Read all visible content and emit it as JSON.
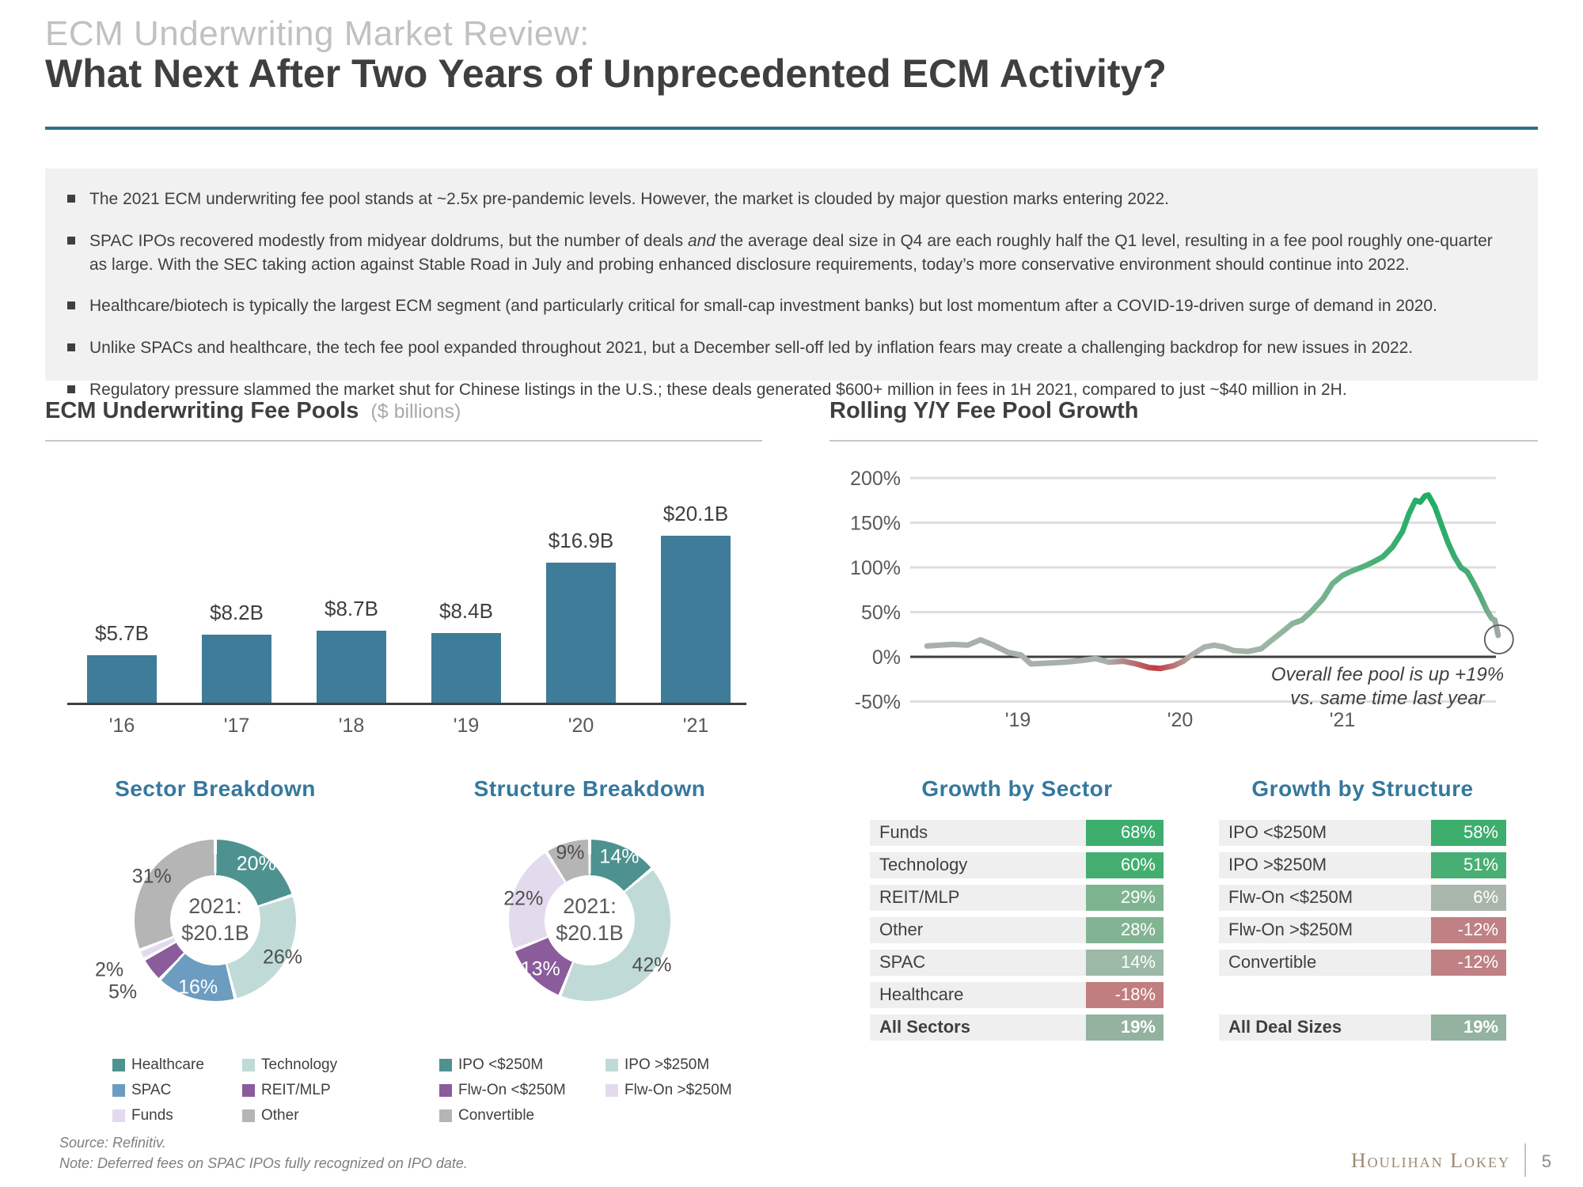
{
  "header": {
    "kicker": "ECM Underwriting Market Review:",
    "title": "What Next After Two Years of Unprecedented ECM Activity?"
  },
  "bullets": [
    {
      "pre": "The 2021 ECM underwriting fee pool stands at ~2.5x pre-pandemic levels. However, the market is clouded by major question marks entering 2022.",
      "italic": "",
      "post": ""
    },
    {
      "pre": "SPAC IPOs recovered modestly from midyear doldrums, but the number of deals ",
      "italic": "and",
      "post": " the average deal size in Q4 are each roughly half the Q1 level, resulting in a fee pool roughly one-quarter as large. With the SEC taking action against Stable Road in July and probing enhanced disclosure requirements, today’s more conservative environment should continue into 2022."
    },
    {
      "pre": "Healthcare/biotech is typically the largest ECM segment (and particularly critical for small-cap investment banks) but lost momentum after a COVID-19-driven surge of demand in 2020.",
      "italic": "",
      "post": ""
    },
    {
      "pre": "Unlike SPACs and healthcare, the tech fee pool expanded throughout 2021, but a December sell-off led by inflation fears may create a challenging backdrop for new issues in 2022.",
      "italic": "",
      "post": ""
    },
    {
      "pre": "Regulatory pressure slammed the market shut for Chinese listings in the U.S.; these deals generated $600+ million in fees in 1H 2021, compared to just ~$40 million in 2H.",
      "italic": "",
      "post": ""
    }
  ],
  "sections": {
    "fee_pools": {
      "title": "ECM Underwriting Fee Pools",
      "unit": "($ billions)"
    },
    "growth": {
      "title": "Rolling Y/Y Fee Pool Growth"
    }
  },
  "colors": {
    "accent_rule": "#2C708C",
    "heading_blue": "#35789E",
    "bar_blue": "#3E7C99",
    "positive_green": "#3EAE6F",
    "negative_rose": "#BF8184",
    "brand_tan": "#9A8A70"
  },
  "chart_data": [
    {
      "id": "fee_pools",
      "type": "bar",
      "title": "ECM Underwriting Fee Pools",
      "unit_label": "($ billions)",
      "categories": [
        "'16",
        "'17",
        "'18",
        "'19",
        "'20",
        "'21"
      ],
      "values": [
        5.7,
        8.2,
        8.7,
        8.4,
        16.9,
        20.1
      ],
      "labels": [
        "$5.7B",
        "$8.2B",
        "$8.7B",
        "$8.4B",
        "$16.9B",
        "$20.1B"
      ],
      "bar_color": "#3E7C99",
      "ylim": [
        0,
        21
      ],
      "grid": false
    },
    {
      "id": "yoy_growth",
      "type": "line",
      "title": "Rolling Y/Y Fee Pool Growth",
      "y_ticks": [
        "200%",
        "150%",
        "100%",
        "50%",
        "0%",
        "-50%"
      ],
      "y_tick_values": [
        200,
        150,
        100,
        50,
        0,
        -50
      ],
      "ylim": [
        -60,
        210
      ],
      "x_ticks": [
        {
          "label": "'19",
          "year": 2019
        },
        {
          "label": "'20",
          "year": 2020
        },
        {
          "label": "'21",
          "year": 2021
        }
      ],
      "points": [
        [
          2018.44,
          12
        ],
        [
          2018.52,
          13
        ],
        [
          2018.6,
          14
        ],
        [
          2018.69,
          13
        ],
        [
          2018.77,
          19
        ],
        [
          2018.85,
          13
        ],
        [
          2018.94,
          5
        ],
        [
          2019.02,
          2
        ],
        [
          2019.08,
          -8
        ],
        [
          2019.19,
          -7
        ],
        [
          2019.29,
          -6
        ],
        [
          2019.4,
          -4
        ],
        [
          2019.48,
          -2
        ],
        [
          2019.56,
          -6
        ],
        [
          2019.65,
          -5
        ],
        [
          2019.73,
          -8
        ],
        [
          2019.81,
          -12
        ],
        [
          2019.88,
          -13
        ],
        [
          2019.96,
          -10
        ],
        [
          2020.02,
          -5
        ],
        [
          2020.08,
          3
        ],
        [
          2020.15,
          11
        ],
        [
          2020.21,
          13
        ],
        [
          2020.27,
          11
        ],
        [
          2020.33,
          7
        ],
        [
          2020.42,
          6
        ],
        [
          2020.5,
          9
        ],
        [
          2020.56,
          18
        ],
        [
          2020.63,
          28
        ],
        [
          2020.69,
          37
        ],
        [
          2020.75,
          41
        ],
        [
          2020.81,
          51
        ],
        [
          2020.88,
          65
        ],
        [
          2020.94,
          82
        ],
        [
          2021.0,
          91
        ],
        [
          2021.06,
          96
        ],
        [
          2021.13,
          101
        ],
        [
          2021.19,
          106
        ],
        [
          2021.25,
          112
        ],
        [
          2021.31,
          123
        ],
        [
          2021.37,
          140
        ],
        [
          2021.41,
          160
        ],
        [
          2021.45,
          175
        ],
        [
          2021.48,
          173
        ],
        [
          2021.51,
          180
        ],
        [
          2021.53,
          181
        ],
        [
          2021.57,
          168
        ],
        [
          2021.61,
          148
        ],
        [
          2021.65,
          128
        ],
        [
          2021.69,
          112
        ],
        [
          2021.73,
          100
        ],
        [
          2021.77,
          95
        ],
        [
          2021.81,
          82
        ],
        [
          2021.85,
          68
        ],
        [
          2021.89,
          52
        ],
        [
          2021.92,
          43
        ],
        [
          2021.94,
          41
        ],
        [
          2021.96,
          24
        ]
      ],
      "gradient_stops": [
        {
          "at": 0,
          "color": "#A9B0AB"
        },
        {
          "at": 0.315,
          "color": "#A9B0AB"
        },
        {
          "at": 0.4,
          "color": "#C23B3F"
        },
        {
          "at": 0.466,
          "color": "#AEB2AE"
        },
        {
          "at": 0.6,
          "color": "#9CB5A4"
        },
        {
          "at": 0.713,
          "color": "#6FB289"
        },
        {
          "at": 0.813,
          "color": "#3BAE6F"
        },
        {
          "at": 0.878,
          "color": "#1FAD64"
        },
        {
          "at": 0.969,
          "color": "#52AB79"
        },
        {
          "at": 0.992,
          "color": "#8FAD9B"
        },
        {
          "at": 1,
          "color": "#9FAAA2"
        }
      ],
      "end_marker": {
        "shape": "circle",
        "value_pct": 19.5
      },
      "annotation": {
        "line1": "Overall fee pool is up +19%",
        "line2": "vs. same time last year"
      },
      "legend_position": "none"
    },
    {
      "id": "sector_breakdown",
      "type": "pie",
      "title": "Sector Breakdown",
      "center_label_line1": "2021:",
      "center_label_line2": "$20.1B",
      "slices": [
        {
          "label": "Healthcare",
          "pct": 20,
          "color": "#4E9290",
          "text": "#FFFFFF",
          "outside": false
        },
        {
          "label": "Technology",
          "pct": 26,
          "color": "#C0DBD7",
          "text": "#4F4F4F",
          "outside": false
        },
        {
          "label": "SPAC",
          "pct": 16,
          "color": "#6C9DC0",
          "text": "#FFFFFF",
          "outside": false
        },
        {
          "label": "REIT/MLP",
          "pct": 5,
          "color": "#8A5C9C",
          "text": "#4F4F4F",
          "outside": true
        },
        {
          "label": "Funds",
          "pct": 2,
          "color": "#E4DAEE",
          "text": "#4F4F4F",
          "outside": true
        },
        {
          "label": "Other",
          "pct": 31,
          "color": "#B5B5B5",
          "text": "#4F4F4F",
          "outside": false
        }
      ]
    },
    {
      "id": "structure_breakdown",
      "type": "pie",
      "title": "Structure Breakdown",
      "center_label_line1": "2021:",
      "center_label_line2": "$20.1B",
      "slices": [
        {
          "label": "IPO <$250M",
          "pct": 14,
          "color": "#4E9290",
          "text": "#FFFFFF",
          "outside": false
        },
        {
          "label": "IPO >$250M",
          "pct": 42,
          "color": "#C0DBD7",
          "text": "#4F4F4F",
          "outside": false
        },
        {
          "label": "Flw-On <$250M",
          "pct": 13,
          "color": "#8A5C9C",
          "text": "#FFFFFF",
          "outside": false
        },
        {
          "label": "Flw-On >$250M",
          "pct": 22,
          "color": "#E4DAEE",
          "text": "#4F4F4F",
          "outside": false
        },
        {
          "label": "Convertible",
          "pct": 9,
          "color": "#B5B5B5",
          "text": "#4F4F4F",
          "outside": false
        }
      ]
    },
    {
      "id": "growth_by_sector",
      "type": "table",
      "title": "Growth by Sector",
      "rows": [
        {
          "label": "Funds",
          "value": "68%",
          "color": "#3EAE6F",
          "bold": false,
          "spacer_before": false
        },
        {
          "label": "Technology",
          "value": "60%",
          "color": "#44AE71",
          "bold": false,
          "spacer_before": false
        },
        {
          "label": "REIT/MLP",
          "value": "29%",
          "color": "#7FB491",
          "bold": false,
          "spacer_before": false
        },
        {
          "label": "Other",
          "value": "28%",
          "color": "#82B493",
          "bold": false,
          "spacer_before": false
        },
        {
          "label": "SPAC",
          "value": "14%",
          "color": "#9CB8A6",
          "bold": false,
          "spacer_before": false
        },
        {
          "label": "Healthcare",
          "value": "-18%",
          "color": "#C17E7E",
          "bold": false,
          "spacer_before": false
        },
        {
          "label": "All Sectors",
          "value": "19%",
          "color": "#93B29F",
          "bold": true,
          "spacer_before": false
        }
      ]
    },
    {
      "id": "growth_by_structure",
      "type": "table",
      "title": "Growth by Structure",
      "rows": [
        {
          "label": "IPO <$250M",
          "value": "58%",
          "color": "#3EAE6F",
          "bold": false,
          "spacer_before": false
        },
        {
          "label": "IPO >$250M",
          "value": "51%",
          "color": "#48AF74",
          "bold": false,
          "spacer_before": false
        },
        {
          "label": "Flw-On <$250M",
          "value": "6%",
          "color": "#A9B6AC",
          "bold": false,
          "spacer_before": false
        },
        {
          "label": "Flw-On >$250M",
          "value": "-12%",
          "color": "#BF8184",
          "bold": false,
          "spacer_before": false
        },
        {
          "label": "Convertible",
          "value": "-12%",
          "color": "#BF8184",
          "bold": false,
          "spacer_before": false
        },
        {
          "label": "All Deal Sizes",
          "value": "19%",
          "color": "#93B29F",
          "bold": true,
          "spacer_before": true
        }
      ]
    }
  ],
  "footer": {
    "source": "Source: Refinitiv.",
    "note": "Note: Deferred fees on SPAC IPOs fully recognized on IPO date.",
    "brand": "Houlihan Lokey",
    "page": "5"
  }
}
